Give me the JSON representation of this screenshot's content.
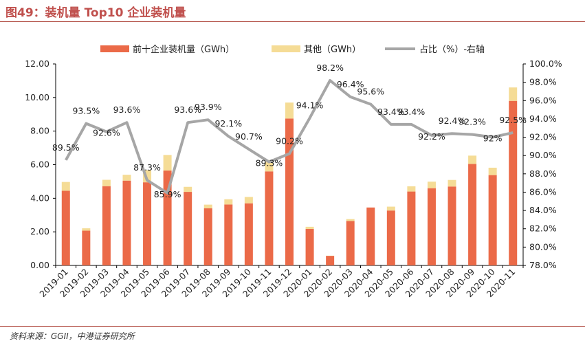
{
  "figure": {
    "title": "图49：装机量 Top10 企业装机量",
    "source": "资料来源：GGII，中港证券研究所"
  },
  "colors": {
    "top10": "#eb6a48",
    "others": "#f5dc96",
    "share_line": "#a6a6a6",
    "title_red": "#c0504d"
  },
  "chart_data": {
    "type": "bar",
    "stacked": true,
    "categories": [
      "2019-01",
      "2019-02",
      "2019-03",
      "2019-04",
      "2019-05",
      "2019-06",
      "2019-07",
      "2019-08",
      "2019-09",
      "2019-10",
      "2019-11",
      "2019-12",
      "2020-01",
      "2020-02",
      "2020-03",
      "2020-04",
      "2020-05",
      "2020-06",
      "2020-07",
      "2020-08",
      "2020-09",
      "2020-10",
      "2020-11"
    ],
    "series": [
      {
        "name": "前十企业装机量（GWh）",
        "type": "bar",
        "axis": "left",
        "values": [
          4.45,
          2.07,
          4.72,
          5.05,
          4.95,
          5.65,
          4.38,
          3.4,
          3.63,
          3.7,
          5.6,
          8.75,
          2.17,
          0.57,
          2.65,
          3.45,
          3.27,
          4.4,
          4.6,
          4.7,
          6.05,
          5.38,
          9.8
        ]
      },
      {
        "name": "其他（GWh）",
        "type": "bar",
        "axis": "left",
        "values": [
          0.52,
          0.14,
          0.38,
          0.35,
          0.72,
          0.93,
          0.3,
          0.22,
          0.31,
          0.38,
          0.68,
          0.95,
          0.13,
          0.01,
          0.11,
          0.0,
          0.23,
          0.31,
          0.39,
          0.39,
          0.49,
          0.44,
          0.8
        ]
      },
      {
        "name": "占比（%）-右轴",
        "type": "line",
        "axis": "right",
        "values": [
          89.5,
          93.5,
          92.6,
          93.6,
          87.3,
          85.9,
          93.6,
          93.9,
          92.1,
          90.7,
          89.3,
          90.2,
          94.1,
          98.2,
          96.4,
          95.6,
          93.4,
          93.4,
          92.2,
          92.4,
          92.3,
          92.0,
          92.5
        ],
        "labels": [
          "89.5%",
          "93.5%",
          "92.6%",
          "93.6%",
          "87.3%",
          "85.9%",
          "93.6%",
          "93.9%",
          "92.1%",
          "90.7%",
          "89.3%",
          "90.2%",
          "94.1%",
          "98.2%",
          "96.4%",
          "95.6%",
          "93.4%",
          "93.4%",
          "92.2%",
          "92.4%",
          "92.3%",
          "92%",
          "92.5%"
        ]
      }
    ],
    "y_left": {
      "min": 0,
      "max": 12,
      "ticks": [
        "0.00",
        "2.00",
        "4.00",
        "6.00",
        "8.00",
        "10.00",
        "12.00"
      ]
    },
    "y_right": {
      "min": 78,
      "max": 100,
      "ticks": [
        "78.0%",
        "80.0%",
        "82.0%",
        "84.0%",
        "86.0%",
        "88.0%",
        "90.0%",
        "92.0%",
        "94.0%",
        "96.0%",
        "98.0%",
        "100.0%"
      ]
    },
    "legend_position": "top",
    "grid": false
  }
}
